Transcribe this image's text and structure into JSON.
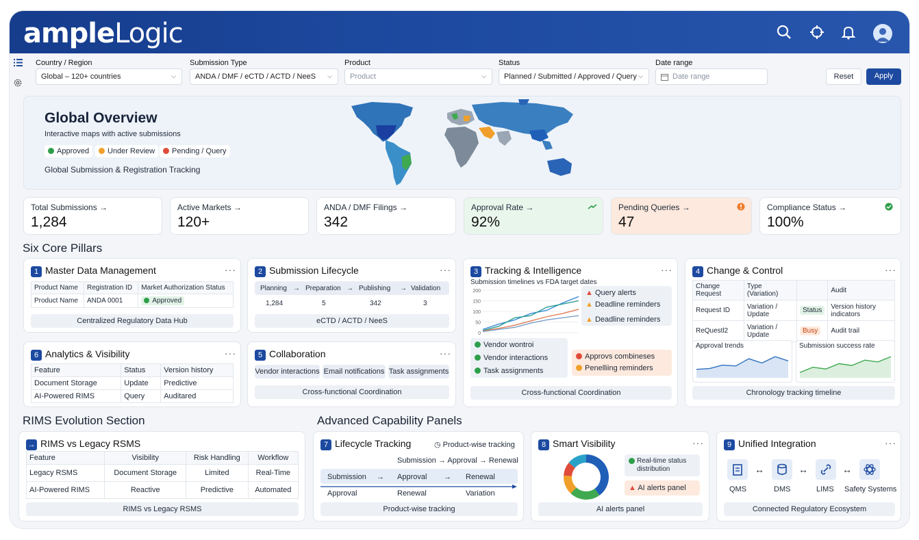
{
  "brand": {
    "logo_bold": "ample",
    "logo_light": "Logic"
  },
  "filters": {
    "country": {
      "label": "Country / Region",
      "value": "Global – 120+ countries"
    },
    "submission_type": {
      "label": "Submission Type",
      "value": "ANDA / DMF / eCTD / ACTD / NeeS"
    },
    "product": {
      "label": "Product",
      "placeholder": "Product"
    },
    "status": {
      "label": "Status",
      "value": "Planned / Submitted / Approved / Query"
    },
    "date": {
      "label": "Date range",
      "placeholder": "Date range"
    },
    "reset": "Reset",
    "apply": "Apply"
  },
  "hero": {
    "title": "Global Overview",
    "subtitle": "Interactive maps with active submissions",
    "legend": [
      "Approved",
      "Under Review",
      "Pending / Query"
    ],
    "caption": "Global Submission & Registration Tracking"
  },
  "kpis": [
    {
      "label": "Total Submissions →",
      "value": "1,284"
    },
    {
      "label": "Active Markets →",
      "value": "120+"
    },
    {
      "label": "ANDA / DMF Filings →",
      "value": "342"
    },
    {
      "label": "Approval Rate →",
      "value": "92%"
    },
    {
      "label": "Pending Queries →",
      "value": "47"
    },
    {
      "label": "Compliance Status →",
      "value": "100%"
    }
  ],
  "sections": {
    "pillars": "Six Core Pillars",
    "rims": "RIMS Evolution Section",
    "advanced": "Advanced Capability Panels"
  },
  "p1": {
    "num": "1",
    "title": "Master Data Management",
    "headers": [
      "Product Name",
      "Registration ID",
      "Market Authorization Status"
    ],
    "row": [
      "Product Name",
      "ANDA 0001",
      "Approved"
    ],
    "footer": "Centralized Regulatory Data Hub"
  },
  "p2": {
    "num": "2",
    "title": "Submission Lifecycle",
    "stages": [
      "Planning",
      "Preparation",
      "Publishing",
      "Validation"
    ],
    "counts": [
      "1,284",
      "5",
      "342",
      "3"
    ],
    "footer": "eCTD / ACTD / NeeS"
  },
  "p3": {
    "num": "3",
    "title": "Tracking & Intelligence",
    "subtitle": "Submission timelines vs FDA target dates",
    "alerts": [
      "Query alerts",
      "Deadline reminders",
      "Deadline reminders"
    ],
    "checks": [
      "Vendor wontroi",
      "Vendor interactions",
      "Task assignments"
    ],
    "flags": [
      "Approvs combineses",
      "Penelliing reminders"
    ],
    "footer": "Cross-functional Coordination",
    "yticks": [
      "200",
      "150",
      "100",
      "50",
      "0"
    ]
  },
  "p4": {
    "num": "4",
    "title": "Change & Control",
    "headers": [
      "Change Request",
      "Type (Variation)",
      "",
      "Audit"
    ],
    "rows": [
      [
        "Request ID",
        "Variation / Update",
        "Status",
        "Version history indicators"
      ],
      [
        "ReQuestl2",
        "Variation / Update",
        "Busy",
        "Audit trail"
      ]
    ],
    "trend_a": "Approval trends",
    "trend_b": "Submission success rate",
    "footer": "Chronology tracking timeline"
  },
  "p6": {
    "num": "6",
    "title": "Analytics & Visibility",
    "headers": [
      "Feature",
      "Status",
      "Version history"
    ],
    "rows": [
      [
        "Document Storage",
        "Update",
        "Predictive"
      ],
      [
        "AI-Powered RIMS",
        "Query",
        "Auditared"
      ]
    ]
  },
  "p5": {
    "num": "5",
    "title": "Collaboration",
    "tags": [
      "Vendor interactions",
      "Email notifications",
      "Task assignments"
    ],
    "footer": "Cross-functional Coordination"
  },
  "rims": {
    "title": "RIMS vs Legacy RSMS",
    "headers": [
      "Feature",
      "Visibility",
      "Risk Handling",
      "Workflow"
    ],
    "rows": [
      [
        "Legacy RSMS",
        "Document Storage",
        "Limited",
        "Real-Time"
      ],
      [
        "AI-Powered RIMS",
        "Reactive",
        "Predictive",
        "Automated"
      ]
    ],
    "footer": "RIMS vs Legacy RSMS"
  },
  "p7": {
    "num": "7",
    "title": "Lifecycle Tracking",
    "badge": "Product-wise tracking",
    "flow": "Submission → Approval → Renewal",
    "steps": [
      "Submission",
      "→",
      "Approval",
      "→",
      "Renewal"
    ],
    "under": [
      "Approval",
      "Renewal",
      "Variation"
    ],
    "footer": "Product-wise tracking"
  },
  "p8": {
    "num": "8",
    "title": "Smart Visibility",
    "status": "Real-time status distribution",
    "alert": "AI alerts panel",
    "footer": "AI alerts panel",
    "donut": [
      {
        "value": 40,
        "color": "#1f5fb8"
      },
      {
        "value": 22,
        "color": "#3fa94f"
      },
      {
        "value": 14,
        "color": "#f0a02a"
      },
      {
        "value": 10,
        "color": "#e04b3a"
      },
      {
        "value": 14,
        "color": "#2aa1c9"
      }
    ]
  },
  "p9": {
    "num": "9",
    "title": "Unified Integration",
    "systems": [
      "QMS",
      "DMS",
      "LIMS",
      "Safety Systems"
    ],
    "footer": "Connected Regulatory Ecosystem"
  },
  "colors": {
    "header": "#1d4aa0",
    "approved": "#2e9e4b",
    "review": "#f0a02a",
    "pending": "#e04b3a",
    "accent": "#1d4aa0"
  },
  "chart_data": [
    {
      "type": "line",
      "title": "Submission timelines vs FDA target dates",
      "x": [
        1,
        2,
        3,
        4,
        5,
        6,
        7
      ],
      "yticks": [
        0,
        50,
        100,
        150,
        200
      ],
      "ylim": [
        0,
        200
      ],
      "series": [
        {
          "values": [
            15,
            40,
            60,
            90,
            105,
            140,
            170
          ],
          "color": "#3b8bd8"
        },
        {
          "values": [
            10,
            30,
            70,
            80,
            120,
            135,
            150
          ],
          "color": "#2a9d8f"
        },
        {
          "values": [
            8,
            20,
            35,
            55,
            75,
            90,
            110
          ],
          "color": "#e07b53"
        },
        {
          "values": [
            5,
            15,
            25,
            45,
            60,
            70,
            80
          ],
          "color": "#7aa0c8"
        }
      ]
    },
    {
      "type": "area",
      "title": "Approval trends",
      "x": [
        1,
        2,
        3,
        4,
        5,
        6,
        7,
        8
      ],
      "values": [
        20,
        22,
        30,
        28,
        45,
        35,
        50,
        40
      ]
    },
    {
      "type": "area",
      "title": "Submission success rate",
      "x": [
        1,
        2,
        3,
        4,
        5,
        6,
        7,
        8
      ],
      "values": [
        15,
        30,
        25,
        40,
        35,
        50,
        45,
        60
      ]
    }
  ]
}
